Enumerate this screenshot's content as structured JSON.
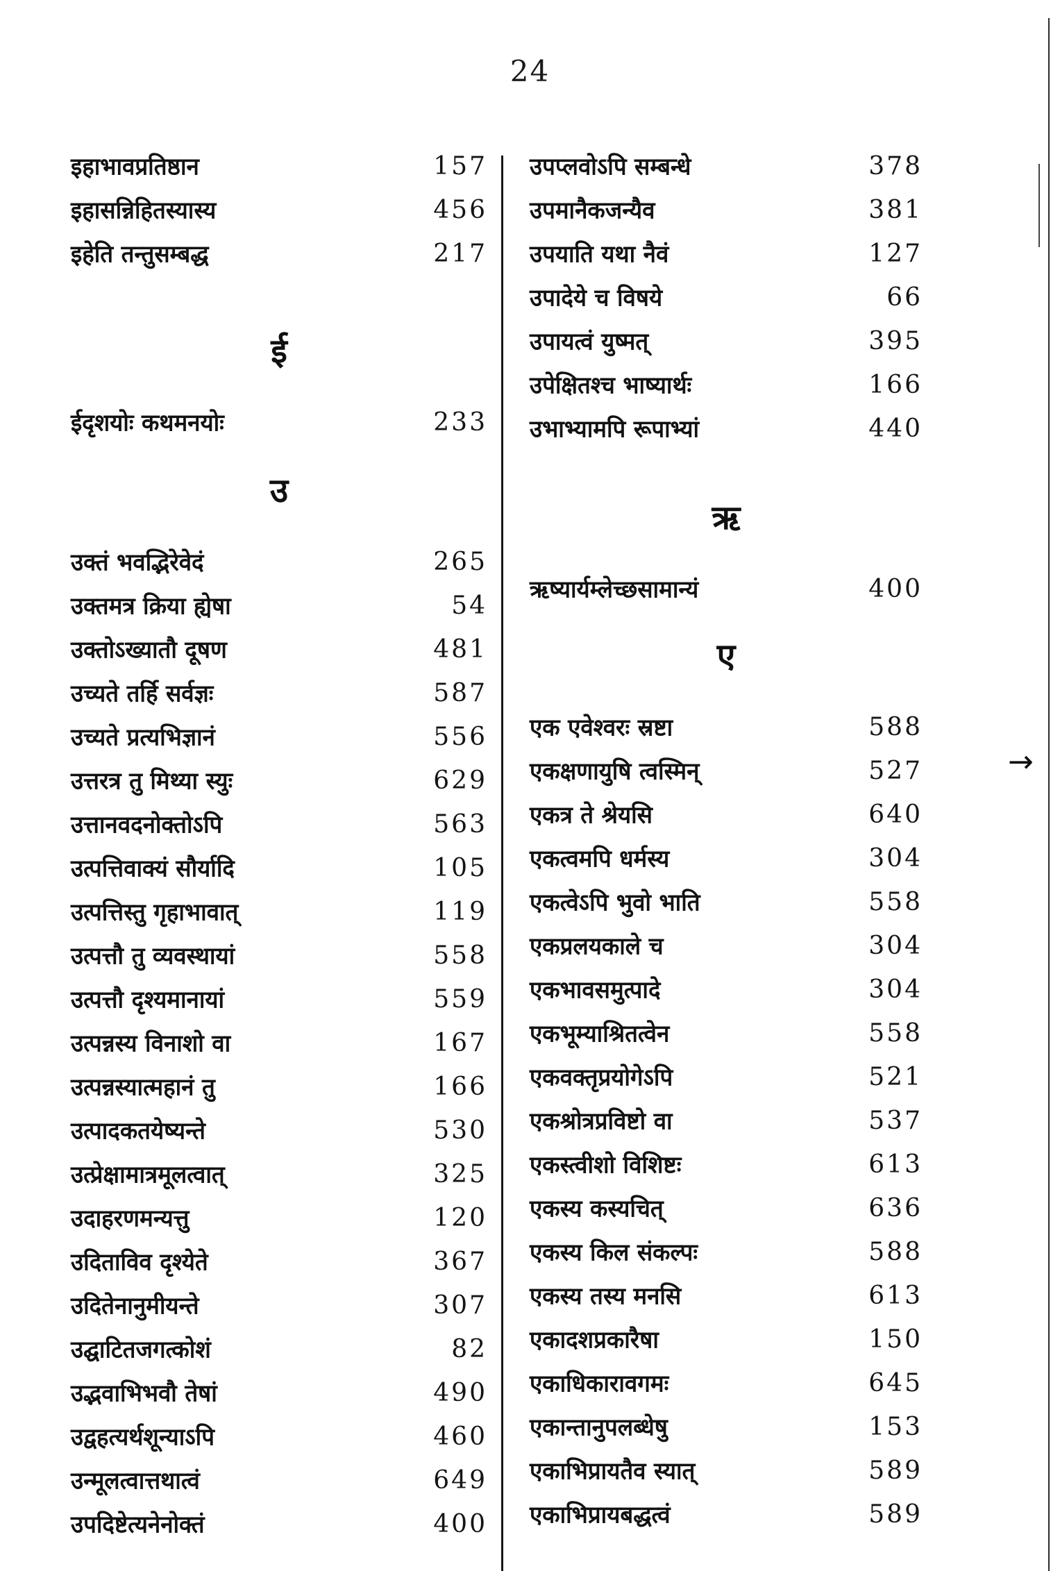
{
  "page": {
    "number": "24"
  },
  "ink_color": "#151515",
  "left_column": {
    "sections": [
      {
        "header": "",
        "entries": [
          {
            "term": "इहाभावप्रतिष्ठान",
            "page": "157"
          },
          {
            "term": "इहासन्निहितस्यास्य",
            "page": "456"
          },
          {
            "term": "इहेति तन्तुसम्बद्ध",
            "page": "217"
          }
        ]
      },
      {
        "header": "ई",
        "entries": [
          {
            "term": "ईदृशयोः कथमनयोः",
            "page": "233"
          }
        ]
      },
      {
        "header": "उ",
        "entries": [
          {
            "term": "उक्तं भवद्भिरेवेदं",
            "page": "265"
          },
          {
            "term": "उक्तमत्र क्रिया ह्येषा",
            "page": "54"
          },
          {
            "term": "उक्तोऽख्यातौ दूषण",
            "page": "481"
          },
          {
            "term": "उच्यते तर्हि सर्वज्ञः",
            "page": "587"
          },
          {
            "term": "उच्यते प्रत्यभिज्ञानं",
            "page": "556"
          },
          {
            "term": "उत्तरत्र तु मिथ्या स्युः",
            "page": "629"
          },
          {
            "term": "उत्तानवदनोक्तोऽपि",
            "page": "563"
          },
          {
            "term": "उत्पत्तिवाक्यं सौर्यादि",
            "page": "105"
          },
          {
            "term": "उत्पत्तिस्तु गृहाभावात्",
            "page": "119"
          },
          {
            "term": "उत्पत्तौ तु व्यवस्थायां",
            "page": "558"
          },
          {
            "term": "उत्पत्तौ दृश्यमानायां",
            "page": "559"
          },
          {
            "term": "उत्पन्नस्य विनाशो वा",
            "page": "167"
          },
          {
            "term": "उत्पन्नस्यात्महानं तु",
            "page": "166"
          },
          {
            "term": "उत्पादकतयेष्यन्ते",
            "page": "530"
          },
          {
            "term": "उत्प्रेक्षामात्रमूलत्वात्",
            "page": "325"
          },
          {
            "term": "उदाहरणमन्यत्तु",
            "page": "120"
          },
          {
            "term": "उदिताविव दृश्येते",
            "page": "367"
          },
          {
            "term": "उदितेनानुमीयन्ते",
            "page": "307"
          },
          {
            "term": "उद्घाटितजगत्कोशं",
            "page": "82"
          },
          {
            "term": "उद्भवाभिभवौ तेषां",
            "page": "490"
          },
          {
            "term": "उद्वहत्यर्थशून्याऽपि",
            "page": "460"
          },
          {
            "term": "उन्मूलत्वात्तथात्वं",
            "page": "649"
          },
          {
            "term": "उपदिष्टेत्यनेनोक्तं",
            "page": "400"
          }
        ]
      }
    ]
  },
  "right_column": {
    "sections": [
      {
        "header": "",
        "entries": [
          {
            "term": "उपप्लवोऽपि सम्बन्धे",
            "page": "378"
          },
          {
            "term": "उपमानैकजन्यैव",
            "page": "381"
          },
          {
            "term": "उपयाति यथा नैवं",
            "page": "127"
          },
          {
            "term": "उपादेये च विषये",
            "page": "66"
          },
          {
            "term": "उपायत्वं युष्मत्",
            "page": "395"
          },
          {
            "term": "उपेक्षितश्च भाष्यार्थः",
            "page": "166"
          },
          {
            "term": "उभाभ्यामपि रूपाभ्यां",
            "page": "440"
          }
        ]
      },
      {
        "header": "ऋ",
        "entries": [
          {
            "term": "ऋष्यार्यम्लेच्छसामान्यं",
            "page": "400"
          }
        ]
      },
      {
        "header": "ए",
        "entries": [
          {
            "term": "एक एवेश्वरः स्रष्टा",
            "page": "588"
          },
          {
            "term": "एकक्षणायुषि त्वस्मिन्",
            "page": "527"
          },
          {
            "term": "एकत्र ते श्रेयसि",
            "page": "640"
          },
          {
            "term": "एकत्वमपि धर्मस्य",
            "page": "304"
          },
          {
            "term": "एकत्वेऽपि भुवो भाति",
            "page": "558"
          },
          {
            "term": "एकप्रलयकाले च",
            "page": "304"
          },
          {
            "term": "एकभावसमुत्पादे",
            "page": "304"
          },
          {
            "term": "एकभूम्याश्रितत्वेन",
            "page": "558"
          },
          {
            "term": "एकवक्तृप्रयोगेऽपि",
            "page": "521"
          },
          {
            "term": "एकश्रोत्रप्रविष्टो वा",
            "page": "537"
          },
          {
            "term": "एकस्त्वीशो विशिष्टः",
            "page": "613"
          },
          {
            "term": "एकस्य कस्यचित्",
            "page": "636"
          },
          {
            "term": "एकस्य किल संकल्पः",
            "page": "588"
          },
          {
            "term": "एकस्य तस्य मनसि",
            "page": "613"
          },
          {
            "term": "एकादशप्रकारैषा",
            "page": "150"
          },
          {
            "term": "एकाधिकारावगमः",
            "page": "645"
          },
          {
            "term": "एकान्तानुपलब्धेषु",
            "page": "153"
          },
          {
            "term": "एकाभिप्रायतैव स्यात्",
            "page": "589"
          },
          {
            "term": "एकाभिप्रायबद्धत्वं",
            "page": "589"
          }
        ]
      }
    ]
  },
  "decorations": {
    "margin_arrow": "→"
  }
}
